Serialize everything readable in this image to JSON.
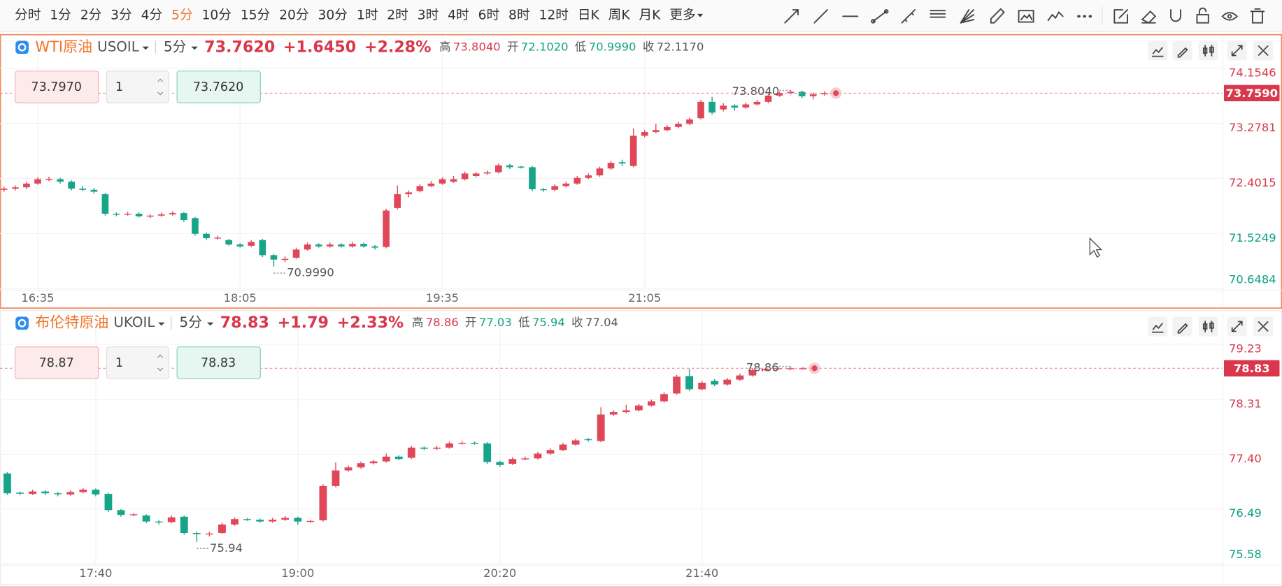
{
  "toolbar": {
    "periods": [
      "分时",
      "1分",
      "2分",
      "3分",
      "4分",
      "5分",
      "10分",
      "15分",
      "20分",
      "30分",
      "1时",
      "2时",
      "3时",
      "4时",
      "6时",
      "8时",
      "12时",
      "日K",
      "周K",
      "月K"
    ],
    "active": "5分",
    "more": "更多"
  },
  "panels": [
    {
      "name": "WTI原油",
      "symbol": "USOIL",
      "period": "5分",
      "price": "73.7620",
      "change": "+1.6450",
      "change_pct": "+2.28%",
      "stats": [
        {
          "label": "高",
          "value": {
            "value": 73.804,
            "label": "73.8040"
          }
        },
        {
          "label": "开",
          "value": {
            "value": 72.102,
            "label": "72.1020"
          }
        },
        {
          "label": "低",
          "value": {
            "value": 70.999,
            "label": "70.9990"
          }
        },
        {
          "label": "收",
          "value": {
            "value": 72.117,
            "label": "72.1170"
          }
        }
      ],
      "sell": "73.7970",
      "qty": "1",
      "buy": "73.7620",
      "chart_data": {
        "type": "candlestick",
        "up_color": "#e0485a",
        "down_color": "#17a589",
        "grid": true,
        "ohlc": [
          [
            72.22,
            72.27,
            72.19,
            72.24
          ],
          [
            72.24,
            72.29,
            72.21,
            72.26
          ],
          [
            72.26,
            72.35,
            72.23,
            72.32
          ],
          [
            72.32,
            72.42,
            72.3,
            72.39
          ],
          [
            72.38,
            72.43,
            72.36,
            72.39
          ],
          [
            72.39,
            72.41,
            72.32,
            72.35
          ],
          [
            72.35,
            72.37,
            72.21,
            72.24
          ],
          [
            72.24,
            72.28,
            72.2,
            72.22
          ],
          [
            72.22,
            72.25,
            72.16,
            72.19
          ],
          [
            72.15,
            72.17,
            71.81,
            71.84
          ],
          [
            71.84,
            71.86,
            71.8,
            71.83
          ],
          [
            71.83,
            71.87,
            71.81,
            71.84
          ],
          [
            71.84,
            71.86,
            71.78,
            71.8
          ],
          [
            71.8,
            71.83,
            71.77,
            71.81
          ],
          [
            71.81,
            71.86,
            71.79,
            71.83
          ],
          [
            71.83,
            71.88,
            71.81,
            71.85
          ],
          [
            71.85,
            71.87,
            71.71,
            71.74
          ],
          [
            71.77,
            71.79,
            71.49,
            71.52
          ],
          [
            71.52,
            71.54,
            71.42,
            71.45
          ],
          [
            71.45,
            71.49,
            71.43,
            71.46
          ],
          [
            71.42,
            71.44,
            71.33,
            71.35
          ],
          [
            71.35,
            71.37,
            71.3,
            71.32
          ],
          [
            71.33,
            71.42,
            71.31,
            71.39
          ],
          [
            71.42,
            71.44,
            71.15,
            71.18
          ],
          [
            71.18,
            71.2,
            70.999,
            71.11
          ],
          [
            71.11,
            71.16,
            71.07,
            71.12
          ],
          [
            71.14,
            71.3,
            71.12,
            71.27
          ],
          [
            71.27,
            71.38,
            71.25,
            71.35
          ],
          [
            71.35,
            71.37,
            71.3,
            71.32
          ],
          [
            71.32,
            71.38,
            71.3,
            71.35
          ],
          [
            71.35,
            71.37,
            71.3,
            71.32
          ],
          [
            71.32,
            71.39,
            71.3,
            71.36
          ],
          [
            71.36,
            71.38,
            71.3,
            71.32
          ],
          [
            71.32,
            71.34,
            71.27,
            71.3
          ],
          [
            71.31,
            71.92,
            71.29,
            71.89
          ],
          [
            71.93,
            72.29,
            71.91,
            72.15
          ],
          [
            72.15,
            72.21,
            72.1,
            72.18
          ],
          [
            72.2,
            72.31,
            72.18,
            72.28
          ],
          [
            72.28,
            72.36,
            72.26,
            72.32
          ],
          [
            72.32,
            72.42,
            72.3,
            72.39
          ],
          [
            72.35,
            72.44,
            72.33,
            72.39
          ],
          [
            72.39,
            72.51,
            72.37,
            72.48
          ],
          [
            72.44,
            72.5,
            72.42,
            72.48
          ],
          [
            72.48,
            72.53,
            72.46,
            72.5
          ],
          [
            72.5,
            72.64,
            72.48,
            72.61
          ],
          [
            72.61,
            72.63,
            72.55,
            72.58
          ],
          [
            72.59,
            72.6,
            72.56,
            72.58
          ],
          [
            72.58,
            72.6,
            72.2,
            72.23
          ],
          [
            72.23,
            72.25,
            72.19,
            72.22
          ],
          [
            72.22,
            72.31,
            72.2,
            72.28
          ],
          [
            72.28,
            72.35,
            72.26,
            72.32
          ],
          [
            72.32,
            72.44,
            72.3,
            72.41
          ],
          [
            72.41,
            72.48,
            72.39,
            72.45
          ],
          [
            72.45,
            72.59,
            72.43,
            72.56
          ],
          [
            72.56,
            72.68,
            72.54,
            72.65
          ],
          [
            72.66,
            72.7,
            72.6,
            72.64
          ],
          [
            72.6,
            73.2,
            72.58,
            73.08
          ],
          [
            73.08,
            73.17,
            73.06,
            73.14
          ],
          [
            73.14,
            73.27,
            73.12,
            73.17
          ],
          [
            73.17,
            73.25,
            73.15,
            73.22
          ],
          [
            73.22,
            73.3,
            73.2,
            73.27
          ],
          [
            73.27,
            73.37,
            73.25,
            73.34
          ],
          [
            73.36,
            73.65,
            73.34,
            73.62
          ],
          [
            73.62,
            73.7,
            73.42,
            73.45
          ],
          [
            73.5,
            73.6,
            73.47,
            73.56
          ],
          [
            73.56,
            73.58,
            73.48,
            73.53
          ],
          [
            73.53,
            73.61,
            73.51,
            73.58
          ],
          [
            73.58,
            73.65,
            73.56,
            73.62
          ],
          [
            73.62,
            73.75,
            73.6,
            73.72
          ],
          [
            73.72,
            73.78,
            73.7,
            73.76
          ],
          [
            73.76,
            73.804,
            73.74,
            73.78
          ],
          [
            73.78,
            73.8,
            73.68,
            73.71
          ],
          [
            73.71,
            73.77,
            73.66,
            73.74
          ],
          [
            73.74,
            73.79,
            73.72,
            73.76
          ]
        ],
        "xlim": [
          -0.36,
          108.4
        ],
        "xticks": [
          {
            "value": 3,
            "label": "16:35"
          },
          {
            "value": 21,
            "label": "18:05"
          },
          {
            "value": 39,
            "label": "19:35"
          },
          {
            "value": 57,
            "label": "21:05"
          }
        ],
        "ylim": [
          70.63,
          74.67
        ],
        "yticks": [
          74.1546,
          73.2781,
          72.4015,
          71.5249,
          70.6484
        ],
        "last_price": {
          "value": 73.759,
          "label": "73.7590"
        },
        "annotations": [
          {
            "value": 73.804,
            "label": "73.8040"
          },
          {
            "value": 70.999,
            "label": "70.9990"
          }
        ]
      }
    },
    {
      "name": "布伦特原油",
      "symbol": "UKOIL",
      "period": "5分",
      "price": "78.83",
      "change": "+1.79",
      "change_pct": "+2.33%",
      "stats": [
        {
          "label": "高",
          "value": 78.86
        },
        {
          "label": "开",
          "value": 77.03
        },
        {
          "label": "低",
          "value": 75.94
        },
        {
          "label": "收",
          "value": 77.04
        }
      ],
      "sell": "78.87",
      "qty": "1",
      "buy": "78.83",
      "chart_data": {
        "type": "candlestick",
        "up_color": "#e0485a",
        "down_color": "#17a589",
        "grid": true,
        "ohlc": [
          [
            77.08,
            77.1,
            76.72,
            76.75
          ],
          [
            76.76,
            76.78,
            76.72,
            76.75
          ],
          [
            76.74,
            76.81,
            76.72,
            76.78
          ],
          [
            76.78,
            76.8,
            76.72,
            76.75
          ],
          [
            76.75,
            76.77,
            76.7,
            76.74
          ],
          [
            76.73,
            76.8,
            76.71,
            76.77
          ],
          [
            76.77,
            76.84,
            76.75,
            76.81
          ],
          [
            76.81,
            76.83,
            76.7,
            76.73
          ],
          [
            76.74,
            76.76,
            76.44,
            76.47
          ],
          [
            76.47,
            76.49,
            76.36,
            76.39
          ],
          [
            76.39,
            76.42,
            76.37,
            76.4
          ],
          [
            76.38,
            76.4,
            76.25,
            76.28
          ],
          [
            76.28,
            76.3,
            76.23,
            76.27
          ],
          [
            76.27,
            76.38,
            76.25,
            76.35
          ],
          [
            76.36,
            76.38,
            76.06,
            76.09
          ],
          [
            76.09,
            76.11,
            75.94,
            76.07
          ],
          [
            76.07,
            76.11,
            76.03,
            76.08
          ],
          [
            76.09,
            76.26,
            76.07,
            76.23
          ],
          [
            76.23,
            76.35,
            76.21,
            76.32
          ],
          [
            76.32,
            76.34,
            76.29,
            76.31
          ],
          [
            76.31,
            76.33,
            76.26,
            76.28
          ],
          [
            76.28,
            76.34,
            76.26,
            76.31
          ],
          [
            76.31,
            76.37,
            76.29,
            76.34
          ],
          [
            76.34,
            76.36,
            76.23,
            76.28
          ],
          [
            76.28,
            76.31,
            76.26,
            76.29
          ],
          [
            76.3,
            76.9,
            76.28,
            76.87
          ],
          [
            76.87,
            77.26,
            76.85,
            77.13
          ],
          [
            77.13,
            77.21,
            77.11,
            77.18
          ],
          [
            77.18,
            77.28,
            77.16,
            77.25
          ],
          [
            77.25,
            77.31,
            77.23,
            77.28
          ],
          [
            77.28,
            77.41,
            77.26,
            77.36
          ],
          [
            77.36,
            77.38,
            77.3,
            77.32
          ],
          [
            77.34,
            77.54,
            77.32,
            77.51
          ],
          [
            77.51,
            77.53,
            77.47,
            77.49
          ],
          [
            77.49,
            77.54,
            77.47,
            77.51
          ],
          [
            77.51,
            77.61,
            77.49,
            77.58
          ],
          [
            77.58,
            77.62,
            77.56,
            77.59
          ],
          [
            77.59,
            77.61,
            77.56,
            77.58
          ],
          [
            77.58,
            77.6,
            77.24,
            77.27
          ],
          [
            77.27,
            77.29,
            77.19,
            77.22
          ],
          [
            77.24,
            77.35,
            77.22,
            77.32
          ],
          [
            77.32,
            77.36,
            77.3,
            77.33
          ],
          [
            77.33,
            77.44,
            77.31,
            77.41
          ],
          [
            77.41,
            77.5,
            77.39,
            77.47
          ],
          [
            77.47,
            77.59,
            77.45,
            77.56
          ],
          [
            77.56,
            77.66,
            77.54,
            77.63
          ],
          [
            77.65,
            77.67,
            77.61,
            77.64
          ],
          [
            77.62,
            78.18,
            77.6,
            78.06
          ],
          [
            78.06,
            78.13,
            78.04,
            78.1
          ],
          [
            78.1,
            78.22,
            78.08,
            78.13
          ],
          [
            78.13,
            78.24,
            78.11,
            78.21
          ],
          [
            78.21,
            78.31,
            78.19,
            78.28
          ],
          [
            78.28,
            78.43,
            78.26,
            78.4
          ],
          [
            78.41,
            78.72,
            78.39,
            78.69
          ],
          [
            78.7,
            78.82,
            78.45,
            78.48
          ],
          [
            78.48,
            78.62,
            78.46,
            78.59
          ],
          [
            78.62,
            78.65,
            78.53,
            78.56
          ],
          [
            78.56,
            78.67,
            78.54,
            78.64
          ],
          [
            78.64,
            78.74,
            78.62,
            78.71
          ],
          [
            78.71,
            78.83,
            78.69,
            78.8
          ],
          [
            78.8,
            78.84,
            78.78,
            78.82
          ],
          [
            78.82,
            78.85,
            78.8,
            78.83
          ],
          [
            78.82,
            78.86,
            78.8,
            78.83
          ],
          [
            78.83,
            78.85,
            78.81,
            78.83
          ]
        ],
        "xlim": [
          -0.58,
          96.2
        ],
        "xticks": [
          {
            "value": 7,
            "label": "17:40"
          },
          {
            "value": 23,
            "label": "19:00"
          },
          {
            "value": 39,
            "label": "20:20"
          },
          {
            "value": 55,
            "label": "21:40"
          }
        ],
        "ylim": [
          75.56,
          79.77
        ],
        "yticks": [
          79.23,
          78.31,
          {
            "value": 77.4,
            "label": "77.40"
          },
          76.49,
          75.58
        ],
        "last_price": 78.83,
        "annotations": [
          78.86,
          75.94
        ]
      }
    }
  ]
}
